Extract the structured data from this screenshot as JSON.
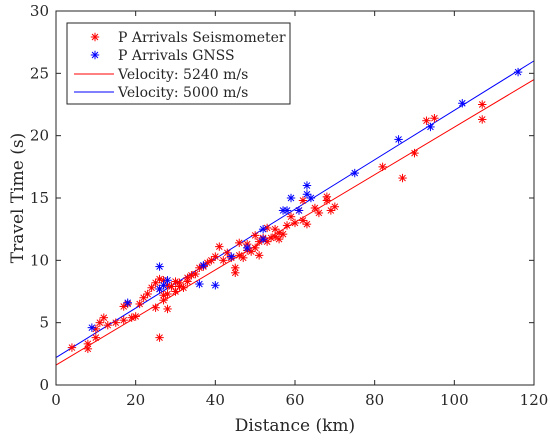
{
  "chart_data": {
    "type": "scatter",
    "xlabel": "Distance (km)",
    "ylabel": "Travel Time (s)",
    "xlim": [
      0,
      120
    ],
    "ylim": [
      0,
      30
    ],
    "xticks": [
      0,
      20,
      40,
      60,
      80,
      100,
      120
    ],
    "yticks": [
      0,
      5,
      10,
      15,
      20,
      25,
      30
    ],
    "grid": false,
    "legend_position": "top-left",
    "series": [
      {
        "name": "P Arrivals Seismometer",
        "kind": "scatter",
        "marker": "asterisk",
        "color": "#ff0000",
        "x": [
          4,
          8,
          8,
          10,
          10,
          11,
          12,
          13,
          15,
          17,
          17,
          18,
          19,
          20,
          21,
          22,
          23,
          24,
          25,
          25,
          26,
          26,
          26,
          27,
          27,
          27,
          28,
          28,
          28,
          29,
          30,
          30,
          31,
          31,
          32,
          33,
          33,
          34,
          35,
          36,
          37,
          38,
          39,
          40,
          41,
          42,
          43,
          44,
          45,
          45,
          46,
          46,
          47,
          48,
          48,
          49,
          50,
          50,
          51,
          51,
          52,
          53,
          53,
          54,
          55,
          55,
          56,
          56,
          57,
          58,
          59,
          60,
          61,
          62,
          62,
          63,
          65,
          66,
          68,
          68,
          69,
          70,
          82,
          87,
          90,
          93,
          95,
          107,
          107
        ],
        "y": [
          3.0,
          2.9,
          3.3,
          3.8,
          4.5,
          5.0,
          5.4,
          4.8,
          5.0,
          6.3,
          5.2,
          6.5,
          5.4,
          5.5,
          6.5,
          7.0,
          7.3,
          7.8,
          6.2,
          8.2,
          8.5,
          7.7,
          3.8,
          8.4,
          7.2,
          6.8,
          8.0,
          7.3,
          6.1,
          7.9,
          8.3,
          7.5,
          7.9,
          8.2,
          7.8,
          8.3,
          8.6,
          8.8,
          8.9,
          9.4,
          9.5,
          9.8,
          10.0,
          10.3,
          11.1,
          10.0,
          10.6,
          10.2,
          9.0,
          9.4,
          10.4,
          11.4,
          10.2,
          10.8,
          11.3,
          10.7,
          11.0,
          12.0,
          10.4,
          11.5,
          11.8,
          11.5,
          12.6,
          11.8,
          11.9,
          12.5,
          11.7,
          12.2,
          12.1,
          12.8,
          13.5,
          13.0,
          14.0,
          13.2,
          14.8,
          12.9,
          14.2,
          13.8,
          14.8,
          15.1,
          14.0,
          14.3,
          17.5,
          16.6,
          18.6,
          21.2,
          21.4,
          21.3,
          22.5
        ]
      },
      {
        "name": "P Arrivals GNSS",
        "kind": "scatter",
        "marker": "asterisk",
        "color": "#0000ff",
        "x": [
          9,
          18,
          26,
          26,
          27,
          28,
          36,
          37,
          40,
          44,
          48,
          52,
          52,
          57,
          58,
          59,
          61,
          63,
          63,
          64,
          75,
          86,
          94,
          102,
          116
        ],
        "y": [
          4.6,
          6.6,
          9.5,
          7.7,
          8.0,
          8.4,
          8.1,
          9.6,
          8.0,
          10.3,
          11.0,
          11.7,
          12.5,
          14.0,
          14.0,
          15.0,
          14.0,
          16.0,
          15.3,
          15.0,
          17.0,
          19.7,
          20.7,
          22.6,
          25.1
        ]
      },
      {
        "name": "Velocity: 5240 m/s",
        "kind": "line",
        "color": "#ff0000",
        "x": [
          0,
          120
        ],
        "y": [
          1.6,
          24.5
        ]
      },
      {
        "name": "Velocity: 5000 m/s",
        "kind": "line",
        "color": "#0000ff",
        "x": [
          0,
          120
        ],
        "y": [
          2.2,
          26.0
        ]
      }
    ]
  }
}
